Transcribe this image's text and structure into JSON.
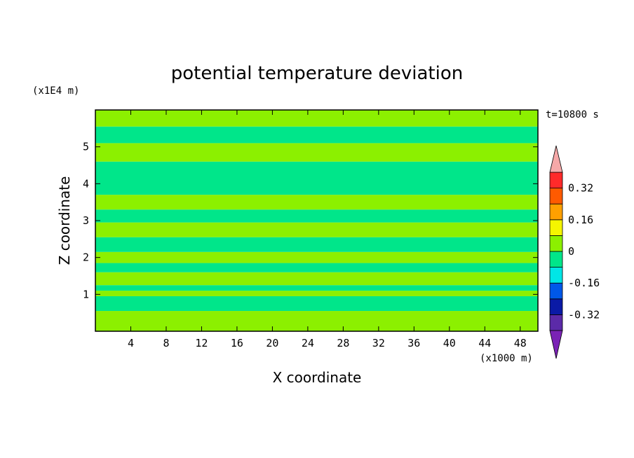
{
  "chart_data": {
    "type": "heatmap",
    "title": "potential temperature deviation",
    "xlabel": "X coordinate",
    "ylabel": "Z coordinate",
    "x_unit": "(x1000 m)",
    "y_unit": "(x1E4 m)",
    "time_label": "t=10800 s",
    "xlim": [
      0,
      50
    ],
    "ylim": [
      0,
      6
    ],
    "x_ticks": [
      4,
      8,
      12,
      16,
      20,
      24,
      28,
      32,
      36,
      40,
      44,
      48
    ],
    "y_ticks": [
      1,
      2,
      3,
      4,
      5
    ],
    "colorbar": {
      "levels": [
        -0.4,
        -0.32,
        -0.24,
        -0.16,
        -0.08,
        0,
        0.08,
        0.16,
        0.24,
        0.32,
        0.4
      ],
      "colors": [
        "#5b2aa8",
        "#0a1aa6",
        "#0058e8",
        "#00e6e6",
        "#00e68a",
        "#8cf000",
        "#f5f500",
        "#ffa000",
        "#ff5a00",
        "#ff2a2a"
      ],
      "under_color": "#7a22b5",
      "over_color": "#f5a8a8",
      "tick_labels": [
        "0.32",
        "0.16",
        "0",
        "-0.16",
        "-0.32"
      ],
      "tick_values": [
        0.32,
        0.16,
        0,
        -0.16,
        -0.32
      ]
    },
    "bands": [
      {
        "z": [
          0.0,
          0.55
        ],
        "value": 0.05
      },
      {
        "z": [
          0.55,
          0.95
        ],
        "value": -0.03
      },
      {
        "z": [
          0.95,
          1.1
        ],
        "value": 0.05
      },
      {
        "z": [
          1.1,
          1.25
        ],
        "value": -0.03
      },
      {
        "z": [
          1.25,
          1.6
        ],
        "value": 0.05
      },
      {
        "z": [
          1.6,
          1.85
        ],
        "value": -0.03
      },
      {
        "z": [
          1.85,
          2.15
        ],
        "value": 0.05
      },
      {
        "z": [
          2.15,
          2.55
        ],
        "value": -0.03
      },
      {
        "z": [
          2.55,
          2.95
        ],
        "value": 0.05
      },
      {
        "z": [
          2.95,
          3.3
        ],
        "value": -0.03
      },
      {
        "z": [
          3.3,
          3.7
        ],
        "value": 0.05
      },
      {
        "z": [
          3.7,
          4.6
        ],
        "value": -0.03
      },
      {
        "z": [
          4.6,
          5.1
        ],
        "value": 0.05
      },
      {
        "z": [
          5.1,
          5.55
        ],
        "value": -0.03
      },
      {
        "z": [
          5.55,
          6.0
        ],
        "value": 0.05
      }
    ],
    "grid": false
  }
}
